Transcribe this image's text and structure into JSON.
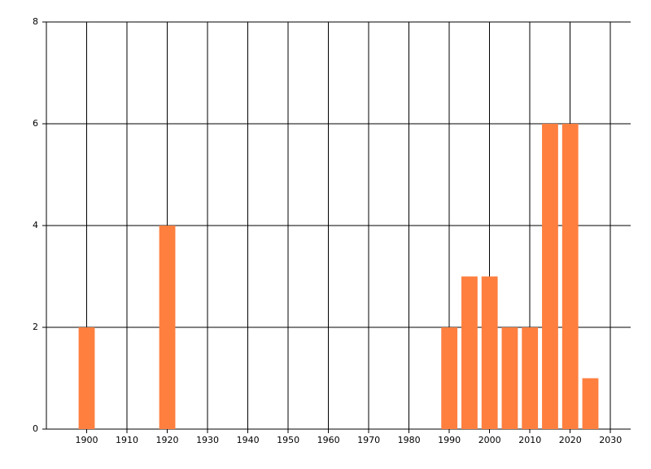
{
  "chart_data": {
    "type": "bar",
    "x": [
      1900,
      1920,
      1990,
      1995,
      2000,
      2005,
      2010,
      2015,
      2020,
      2025
    ],
    "values": [
      2,
      4,
      2,
      3,
      3,
      2,
      2,
      6,
      6,
      1
    ],
    "color": "#ff7f3f",
    "xlim": [
      1890,
      2035
    ],
    "xticks": [
      1900,
      1910,
      1920,
      1930,
      1940,
      1950,
      1960,
      1970,
      1980,
      1990,
      2000,
      2010,
      2020,
      2030
    ],
    "ylim": [
      0,
      8
    ],
    "yticks": [
      0,
      2,
      4,
      6,
      8
    ],
    "grid": true
  }
}
